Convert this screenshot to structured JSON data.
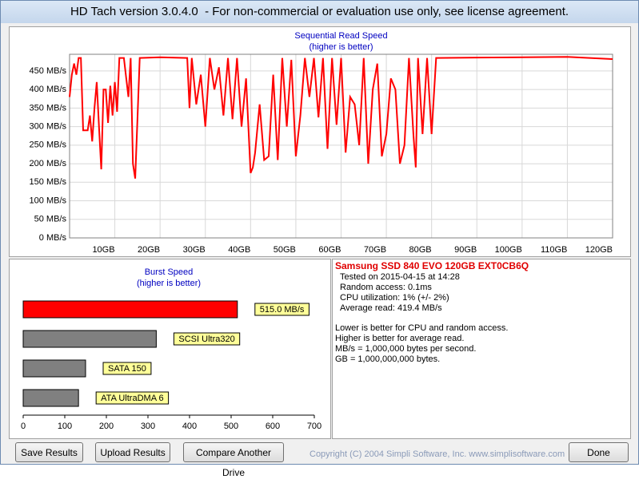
{
  "window": {
    "title": "HD Tach version 3.0.4.0  - For non-commercial or evaluation use only, see license agreement."
  },
  "read_chart": {
    "type": "line",
    "title": "Sequential Read Speed",
    "subtitle": "(higher is better)",
    "color": "#ff0000",
    "grid": true,
    "x": [
      0,
      0.5,
      1,
      1.5,
      2,
      2.5,
      3,
      4,
      4.5,
      5,
      5.5,
      6,
      6.5,
      7,
      7.5,
      8,
      8.5,
      9,
      9.5,
      10,
      10.5,
      11,
      12,
      13,
      13.5,
      14,
      14.5,
      15,
      15.5,
      20,
      26,
      26.5,
      27,
      28,
      29,
      30,
      31,
      32,
      33,
      34,
      35,
      36,
      37,
      38,
      39,
      40,
      40.5,
      41,
      42,
      43,
      44,
      45,
      46,
      47,
      48,
      49,
      50,
      51,
      52,
      53,
      54,
      55,
      56,
      57,
      58,
      59,
      60,
      61,
      62,
      63,
      64,
      65,
      66,
      67,
      68,
      69,
      70,
      71,
      72,
      73,
      74,
      75,
      76,
      76.5,
      77,
      78,
      79,
      80,
      81,
      90,
      100,
      110,
      120
    ],
    "values": [
      380,
      440,
      470,
      440,
      485,
      485,
      290,
      290,
      330,
      260,
      350,
      420,
      300,
      185,
      400,
      400,
      310,
      410,
      330,
      420,
      340,
      485,
      485,
      380,
      485,
      200,
      160,
      320,
      485,
      487,
      485,
      350,
      485,
      360,
      440,
      300,
      485,
      400,
      460,
      330,
      485,
      320,
      485,
      300,
      430,
      175,
      190,
      230,
      360,
      210,
      220,
      440,
      210,
      485,
      300,
      480,
      220,
      330,
      485,
      380,
      485,
      325,
      485,
      240,
      485,
      305,
      485,
      230,
      380,
      360,
      250,
      485,
      200,
      400,
      470,
      220,
      280,
      430,
      400,
      200,
      250,
      485,
      275,
      190,
      485,
      280,
      485,
      280,
      485,
      486,
      487,
      488,
      482
    ],
    "xlim": [
      0,
      120
    ],
    "xticks": [
      {
        "value": 10,
        "label": "10GB"
      },
      {
        "value": 20,
        "label": "20GB"
      },
      {
        "value": 30,
        "label": "30GB"
      },
      {
        "value": 40,
        "label": "40GB"
      },
      {
        "value": 50,
        "label": "50GB"
      },
      {
        "value": 60,
        "label": "60GB"
      },
      {
        "value": 70,
        "label": "70GB"
      },
      {
        "value": 80,
        "label": "80GB"
      },
      {
        "value": 90,
        "label": "90GB"
      },
      {
        "value": 100,
        "label": "100GB"
      },
      {
        "value": 110,
        "label": "110GB"
      },
      {
        "value": 120,
        "label": "120GB"
      }
    ],
    "ylim": [
      0,
      495
    ],
    "yticks": [
      {
        "value": 0,
        "label": "0 MB/s"
      },
      {
        "value": 50,
        "label": "50 MB/s"
      },
      {
        "value": 100,
        "label": "100 MB/s"
      },
      {
        "value": 150,
        "label": "150 MB/s"
      },
      {
        "value": 200,
        "label": "200 MB/s"
      },
      {
        "value": 250,
        "label": "250 MB/s"
      },
      {
        "value": 300,
        "label": "300 MB/s"
      },
      {
        "value": 350,
        "label": "350 MB/s"
      },
      {
        "value": 400,
        "label": "400 MB/s"
      },
      {
        "value": 450,
        "label": "450 MB/s"
      }
    ]
  },
  "burst_chart": {
    "type": "bar",
    "orientation": "horizontal",
    "title": "Burst Speed",
    "subtitle": "(higher is better)",
    "categories": [
      null,
      "SCSI Ultra320",
      "SATA 150",
      "ATA UltraDMA 6"
    ],
    "values": [
      515,
      320,
      150,
      133
    ],
    "value_labels": [
      "515.0 MB/s",
      null,
      null,
      null
    ],
    "colors": [
      "#ff0000",
      "#808080",
      "#808080",
      "#808080"
    ],
    "xlim": [
      0,
      700
    ],
    "xticks": [
      0,
      100,
      200,
      300,
      400,
      500,
      600,
      700
    ]
  },
  "info": {
    "drive": "Samsung SSD 840 EVO 120GB EXT0CB6Q",
    "lines": [
      "Tested on 2015-04-15 at 14:28",
      "Random access: 0.1ms",
      "CPU utilization: 1% (+/- 2%)",
      "Average read: 419.4 MB/s"
    ],
    "notes": [
      "Lower is better for CPU and random access.",
      "Higher is better for average read.",
      "MB/s = 1,000,000 bytes per second.",
      "GB = 1,000,000,000 bytes."
    ]
  },
  "buttons": [
    "Save Results",
    "Upload Results",
    "Compare Another Drive",
    "Done"
  ],
  "copyright": "Copyright (C) 2004 Simpli Software, Inc. www.simplisoftware.com"
}
